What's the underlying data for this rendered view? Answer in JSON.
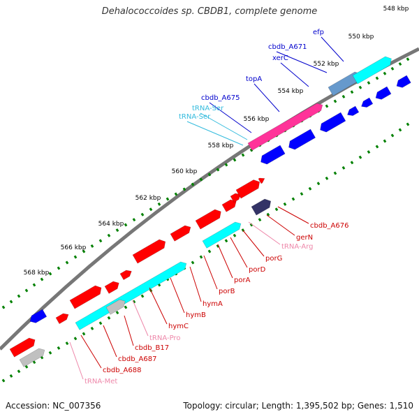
{
  "title": "Dehalococcoides sp. CBDB1, complete genome",
  "footer": {
    "accession": "Accession: NC_007356",
    "summary": "Topology: circular; Length: 1,395,502 bp; Genes: 1,510"
  },
  "colors": {
    "forward_cds": "#ff0000",
    "reverse_cds": "#0000ff",
    "gene_bar": "#00ffff",
    "rna_bar": "#c0c0c0",
    "ticks": "#008000",
    "backbone": "#777777",
    "label_blue": "#0000cc",
    "label_cyan": "#33bbdd",
    "label_red": "#cc0000",
    "label_pink": "#ee88aa"
  },
  "scale_labels": [
    "548 kbp",
    "550 kbp",
    "552 kbp",
    "554 kbp",
    "556 kbp",
    "558 kbp",
    "560 kbp",
    "562 kbp",
    "564 kbp",
    "566 kbp",
    "568 kbp"
  ],
  "upper_labels": [
    {
      "text": "efp",
      "kind": "blue"
    },
    {
      "text": "cbdb_A671",
      "kind": "blue"
    },
    {
      "text": "xerC",
      "kind": "blue"
    },
    {
      "text": "topA",
      "kind": "blue"
    },
    {
      "text": "cbdb_A675",
      "kind": "blue"
    },
    {
      "text": "tRNA-Ser",
      "kind": "cyan"
    },
    {
      "text": "tRNA-Ser",
      "kind": "cyan"
    }
  ],
  "lower_labels": [
    {
      "text": "cbdb_A676",
      "kind": "red"
    },
    {
      "text": "gerN",
      "kind": "red"
    },
    {
      "text": "tRNA-Arg",
      "kind": "pink"
    },
    {
      "text": "porG",
      "kind": "red"
    },
    {
      "text": "porD",
      "kind": "red"
    },
    {
      "text": "porA",
      "kind": "red"
    },
    {
      "text": "porB",
      "kind": "red"
    },
    {
      "text": "hymA",
      "kind": "red"
    },
    {
      "text": "hymB",
      "kind": "red"
    },
    {
      "text": "hymC",
      "kind": "red"
    },
    {
      "text": "tRNA-Pro",
      "kind": "pink"
    },
    {
      "text": "cbdb_B17",
      "kind": "red"
    },
    {
      "text": "cbdb_A687",
      "kind": "red"
    },
    {
      "text": "cbdb_A688",
      "kind": "red"
    },
    {
      "text": "tRNA-Met",
      "kind": "pink"
    }
  ]
}
